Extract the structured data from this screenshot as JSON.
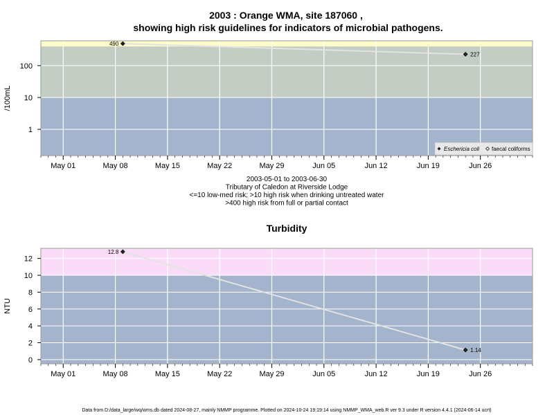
{
  "header": {
    "title_line1": "2003 : Orange WMA, site 187060 ,",
    "title_line2": "showing high risk guidelines for indicators of microbial pathogens."
  },
  "footer": "Data from D:/data_large/wq/wms.db dated 2024-08-27, mainly NMMP programme. Plotted on 2024-10-24 19:19:14 using NMMP_WMA_web.R ver 9.3 under R version 4.4.1 (2024-06-14 ucrt)",
  "chart_data": [
    {
      "type": "line",
      "title": "",
      "ylabel": "/100mL",
      "log_y": true,
      "x_ticks": [
        "May 01",
        "May 08",
        "May 15",
        "May 22",
        "May 29",
        "Jun 05",
        "Jun 12",
        "Jun 19",
        "Jun 26"
      ],
      "y_ticks": [
        "1",
        "10",
        "100"
      ],
      "xlim": [
        "2003-04-28",
        "2003-07-03"
      ],
      "ylim": [
        0.15,
        600
      ],
      "bands": [
        {
          "from": 0.15,
          "to": 10,
          "color": "#a3b4cc"
        },
        {
          "from": 10,
          "to": 400,
          "color": "#c3cdc3"
        },
        {
          "from": 400,
          "to": 600,
          "color": "#fdfbc7"
        }
      ],
      "series": [
        {
          "name": "Eschericia coli",
          "points": [
            {
              "x": "2003-05-09",
              "y": 490,
              "label": "490"
            },
            {
              "x": "2003-06-24",
              "y": 227,
              "label": "227"
            }
          ]
        }
      ],
      "legend": {
        "position": "bottom-right",
        "entries": [
          "Eschericia coli",
          "faecal coliforms"
        ]
      },
      "subtitle_lines": [
        "2003-05-01 to 2003-06-30",
        "Tributary of Caledon at Riverside Lodge",
        "<=10 low-med risk; >10 high risk when drinking untreated water",
        ">400 high risk from full or partial contact"
      ]
    },
    {
      "type": "line",
      "title": "Turbidity",
      "ylabel": "NTU",
      "x_ticks": [
        "May 01",
        "May 08",
        "May 15",
        "May 22",
        "May 29",
        "Jun 05",
        "Jun 12",
        "Jun 19",
        "Jun 26"
      ],
      "y_ticks": [
        "0",
        "2",
        "4",
        "6",
        "8",
        "10",
        "12"
      ],
      "xlim": [
        "2003-04-28",
        "2003-07-03"
      ],
      "ylim": [
        -0.5,
        13.2
      ],
      "bands": [
        {
          "from": -0.5,
          "to": 10,
          "color": "#a3b4cc"
        },
        {
          "from": 10,
          "to": 13.2,
          "color": "#fbdcf8"
        }
      ],
      "series": [
        {
          "name": "",
          "points": [
            {
              "x": "2003-05-09",
              "y": 12.8,
              "label": "12.8"
            },
            {
              "x": "2003-06-24",
              "y": 1.14,
              "label": "1.14"
            }
          ]
        }
      ]
    }
  ]
}
